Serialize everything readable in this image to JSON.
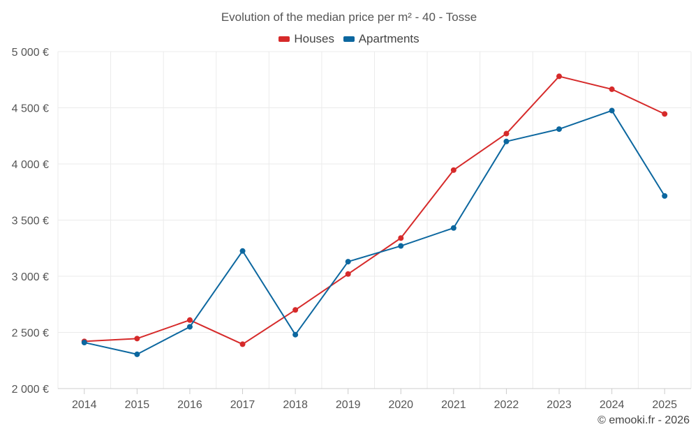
{
  "chart_data": {
    "type": "line",
    "title": "Evolution of the median price per m² - 40 - Tosse",
    "categories": [
      "2014",
      "2015",
      "2016",
      "2017",
      "2018",
      "2019",
      "2020",
      "2021",
      "2022",
      "2023",
      "2024",
      "2025"
    ],
    "series": [
      {
        "name": "Houses",
        "color": "#d62a2a",
        "values": [
          2420,
          2445,
          2610,
          2395,
          2700,
          3020,
          3340,
          3945,
          4270,
          4780,
          4665,
          4445
        ]
      },
      {
        "name": "Apartments",
        "color": "#0c679f",
        "values": [
          2410,
          2305,
          2550,
          3225,
          2480,
          3130,
          3270,
          3430,
          4200,
          4310,
          4475,
          3715
        ]
      }
    ],
    "ylim": [
      2000,
      5000
    ],
    "yticks": [
      2000,
      2500,
      3000,
      3500,
      4000,
      4500,
      5000
    ],
    "ytick_labels": [
      "2 000 €",
      "2 500 €",
      "3 000 €",
      "3 500 €",
      "4 000 €",
      "4 500 €",
      "5 000 €"
    ],
    "grid": true,
    "legend_position": "top-center",
    "xlabel": "",
    "ylabel": ""
  },
  "credit": "© emooki.fr - 2026"
}
